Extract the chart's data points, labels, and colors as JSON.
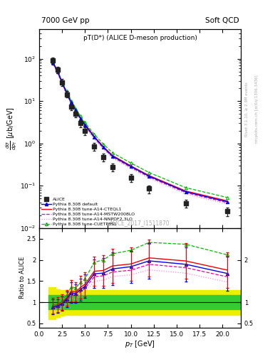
{
  "title_top": "7000 GeV pp",
  "title_right": "Soft QCD",
  "plot_title": "pT(D*) (ALICE D-meson production)",
  "watermark": "ALICE_2017_I1511870",
  "right_label1": "Rivet 3.1.10, ≥ 2.9M events",
  "right_label2": "mcplots.cern.ch [arXiv:1306.3436]",
  "alice_x": [
    1.5,
    2.0,
    2.5,
    3.0,
    3.5,
    4.0,
    4.5,
    5.0,
    6.0,
    7.0,
    8.0,
    10.0,
    12.0,
    16.0,
    20.5
  ],
  "alice_y": [
    90,
    55,
    28,
    14.5,
    7.5,
    5.0,
    3.0,
    2.0,
    0.85,
    0.48,
    0.28,
    0.155,
    0.085,
    0.038,
    0.025
  ],
  "alice_xerr": [
    0.25,
    0.25,
    0.25,
    0.25,
    0.25,
    0.25,
    0.25,
    0.25,
    0.5,
    0.5,
    0.5,
    1.0,
    1.0,
    2.0,
    2.0
  ],
  "alice_yerr_lo": [
    18,
    10,
    5,
    2.5,
    1.5,
    0.9,
    0.6,
    0.4,
    0.17,
    0.1,
    0.06,
    0.032,
    0.018,
    0.008,
    0.006
  ],
  "alice_yerr_hi": [
    18,
    10,
    5,
    2.5,
    1.5,
    0.9,
    0.6,
    0.4,
    0.17,
    0.1,
    0.06,
    0.032,
    0.018,
    0.008,
    0.006
  ],
  "pythia_x": [
    1.5,
    2.0,
    2.5,
    3.0,
    3.5,
    4.0,
    4.5,
    5.0,
    6.0,
    7.0,
    8.0,
    10.0,
    12.0,
    16.0,
    20.5
  ],
  "default_y": [
    80,
    50,
    27,
    15.5,
    9.2,
    6.0,
    3.9,
    2.75,
    1.42,
    0.81,
    0.5,
    0.285,
    0.168,
    0.072,
    0.042
  ],
  "cteql1_y": [
    83,
    52,
    28,
    16.0,
    9.5,
    6.2,
    4.05,
    2.85,
    1.47,
    0.84,
    0.52,
    0.295,
    0.174,
    0.075,
    0.044
  ],
  "mstw_y": [
    78,
    48,
    26,
    14.8,
    8.8,
    5.7,
    3.75,
    2.65,
    1.36,
    0.78,
    0.48,
    0.272,
    0.161,
    0.069,
    0.04
  ],
  "nnpdf_y": [
    74,
    45,
    24,
    13.8,
    8.2,
    5.3,
    3.5,
    2.48,
    1.27,
    0.73,
    0.45,
    0.255,
    0.15,
    0.064,
    0.037
  ],
  "cuetp_y": [
    82,
    53,
    29,
    17.0,
    10.2,
    6.7,
    4.4,
    3.1,
    1.65,
    0.96,
    0.6,
    0.345,
    0.205,
    0.09,
    0.053
  ],
  "xlim": [
    0,
    22
  ],
  "ylim_main": [
    0.01,
    500
  ],
  "ylim_ratio": [
    0.4,
    2.75
  ],
  "color_alice": "#222222",
  "color_default": "#0000ee",
  "color_cteql1": "#ee0000",
  "color_mstw": "#ee00aa",
  "color_nnpdf": "#ff88dd",
  "color_cuetp": "#00bb00",
  "color_green": "#33cc33",
  "color_yellow": "#eeee00"
}
